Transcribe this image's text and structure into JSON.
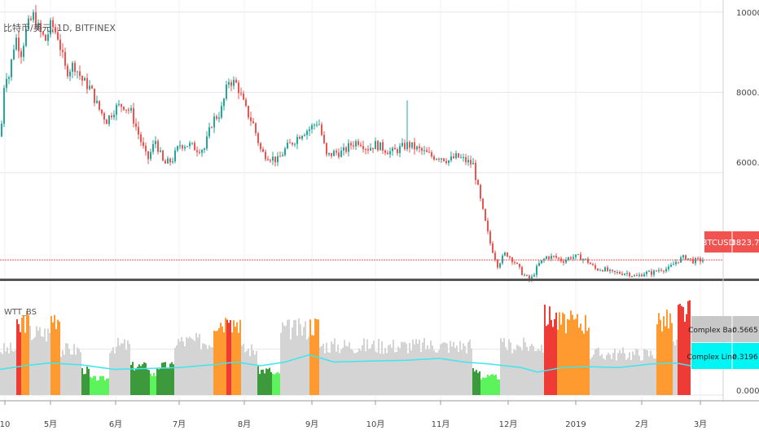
{
  "symbol_title": "比特币/美元, 1D, BITFINEX",
  "indicator_title": "WTT_BS",
  "price_axis": {
    "ticks": [
      "10000.0",
      "8000.0",
      "6000.0"
    ],
    "values": [
      10000,
      8000,
      6000
    ]
  },
  "indicator_axis": {
    "ticks": [
      "0.0000"
    ]
  },
  "last_price": {
    "ticker": "BTCUSD",
    "value": "3823.7",
    "value_num": 3823.7,
    "color": "#f05350"
  },
  "complex_bar": {
    "label": "Complex Bar",
    "value": "0.5665",
    "color": "#c8c8c8"
  },
  "complex_line": {
    "label": "Complex Line",
    "value": "0.3196",
    "color": "#00f5f5"
  },
  "time_axis": [
    "10",
    "5月",
    "6月",
    "7月",
    "8月",
    "9月",
    "10月",
    "11月",
    "12月",
    "2019",
    "2月",
    "3月"
  ],
  "colors": {
    "up": "#26a69a",
    "down": "#ef5350",
    "orange": "#ff9a30",
    "red": "#ef3b36",
    "green_dark": "#3c9a3c",
    "green_light": "#5cf35c",
    "gray": "#d4d4d4",
    "cyan": "#3ee6ee"
  },
  "chart_data": [
    {
      "type": "candlestick",
      "title": "比特币/美元, 1D, BITFINEX",
      "y_range": [
        3400,
        10300
      ],
      "price_path": [
        [
          0,
          6900
        ],
        [
          5,
          8500
        ],
        [
          10,
          8400
        ],
        [
          18,
          9400
        ],
        [
          25,
          9000
        ],
        [
          32,
          9600
        ],
        [
          40,
          9900
        ],
        [
          48,
          9500
        ],
        [
          55,
          9300
        ],
        [
          62,
          9700
        ],
        [
          70,
          9400
        ],
        [
          80,
          8500
        ],
        [
          90,
          8700
        ],
        [
          100,
          8300
        ],
        [
          110,
          8100
        ],
        [
          120,
          7600
        ],
        [
          130,
          7300
        ],
        [
          140,
          7600
        ],
        [
          150,
          7700
        ],
        [
          160,
          7500
        ],
        [
          170,
          6900
        ],
        [
          180,
          6300
        ],
        [
          190,
          6800
        ],
        [
          200,
          6200
        ],
        [
          210,
          6300
        ],
        [
          220,
          6700
        ],
        [
          230,
          6700
        ],
        [
          240,
          6600
        ],
        [
          250,
          6600
        ],
        [
          260,
          7300
        ],
        [
          270,
          7500
        ],
        [
          280,
          8300
        ],
        [
          290,
          8200
        ],
        [
          300,
          7600
        ],
        [
          310,
          7200
        ],
        [
          320,
          6500
        ],
        [
          330,
          6400
        ],
        [
          340,
          6300
        ],
        [
          350,
          6600
        ],
        [
          360,
          6800
        ],
        [
          370,
          7000
        ],
        [
          380,
          7100
        ],
        [
          390,
          7300
        ],
        [
          400,
          6400
        ],
        [
          410,
          6500
        ],
        [
          420,
          6500
        ],
        [
          430,
          6700
        ],
        [
          440,
          6800
        ],
        [
          450,
          6600
        ],
        [
          460,
          6700
        ],
        [
          470,
          6600
        ],
        [
          480,
          6500
        ],
        [
          490,
          6600
        ],
        [
          500,
          6700
        ],
        [
          510,
          6600
        ],
        [
          520,
          6500
        ],
        [
          530,
          6400
        ],
        [
          540,
          6400
        ],
        [
          550,
          6300
        ],
        [
          560,
          6400
        ],
        [
          570,
          6300
        ],
        [
          580,
          6200
        ],
        [
          590,
          5200
        ],
        [
          600,
          4300
        ],
        [
          610,
          3700
        ],
        [
          620,
          4000
        ],
        [
          630,
          3800
        ],
        [
          640,
          3500
        ],
        [
          650,
          3300
        ],
        [
          660,
          3700
        ],
        [
          670,
          3900
        ],
        [
          680,
          3900
        ],
        [
          690,
          3800
        ],
        [
          700,
          3900
        ],
        [
          710,
          3900
        ],
        [
          720,
          3800
        ],
        [
          730,
          3600
        ],
        [
          740,
          3600
        ],
        [
          750,
          3500
        ],
        [
          760,
          3500
        ],
        [
          770,
          3500
        ],
        [
          780,
          3400
        ],
        [
          790,
          3500
        ],
        [
          800,
          3500
        ],
        [
          810,
          3600
        ],
        [
          820,
          3600
        ],
        [
          830,
          3800
        ],
        [
          840,
          3900
        ],
        [
          850,
          3800
        ],
        [
          862,
          3823.7
        ]
      ],
      "spikes": [
        {
          "x": 500,
          "high": 7800
        }
      ]
    },
    {
      "type": "bar",
      "title": "WTT_BS",
      "y_range": [
        0,
        1.2
      ],
      "series": [
        {
          "name": "Complex Bar",
          "current": 0.5665
        },
        {
          "name": "Complex Line",
          "current": 0.3196
        }
      ],
      "segments": [
        {
          "from": 0,
          "to": 20,
          "color": "gray",
          "hi": 0.55
        },
        {
          "from": 20,
          "to": 26,
          "color": "red",
          "hi": 0.8
        },
        {
          "from": 26,
          "to": 36,
          "color": "orange",
          "hi": 0.9
        },
        {
          "from": 36,
          "to": 62,
          "color": "gray",
          "hi": 0.75
        },
        {
          "from": 62,
          "to": 74,
          "color": "orange",
          "hi": 0.95
        },
        {
          "from": 74,
          "to": 100,
          "color": "gray",
          "hi": 0.55
        },
        {
          "from": 100,
          "to": 110,
          "color": "green_dark",
          "hi": 0.3
        },
        {
          "from": 110,
          "to": 134,
          "color": "green_light",
          "hi": 0.2
        },
        {
          "from": 134,
          "to": 160,
          "color": "gray",
          "hi": 0.6
        },
        {
          "from": 160,
          "to": 184,
          "color": "green_dark",
          "hi": 0.35
        },
        {
          "from": 184,
          "to": 192,
          "color": "green_light",
          "hi": 0.25
        },
        {
          "from": 192,
          "to": 214,
          "color": "green_dark",
          "hi": 0.35
        },
        {
          "from": 214,
          "to": 262,
          "color": "gray",
          "hi": 0.65
        },
        {
          "from": 262,
          "to": 278,
          "color": "orange",
          "hi": 0.9
        },
        {
          "from": 278,
          "to": 284,
          "color": "red",
          "hi": 1.05
        },
        {
          "from": 284,
          "to": 296,
          "color": "orange",
          "hi": 0.9
        },
        {
          "from": 296,
          "to": 316,
          "color": "gray",
          "hi": 0.55
        },
        {
          "from": 316,
          "to": 334,
          "color": "green_dark",
          "hi": 0.3
        },
        {
          "from": 334,
          "to": 344,
          "color": "green_light",
          "hi": 0.25
        },
        {
          "from": 344,
          "to": 380,
          "color": "gray",
          "hi": 0.8
        },
        {
          "from": 380,
          "to": 392,
          "color": "orange",
          "hi": 0.85
        },
        {
          "from": 392,
          "to": 580,
          "color": "gray",
          "hi": 0.6
        },
        {
          "from": 580,
          "to": 590,
          "color": "green_dark",
          "hi": 0.3
        },
        {
          "from": 590,
          "to": 614,
          "color": "green_light",
          "hi": 0.22
        },
        {
          "from": 614,
          "to": 668,
          "color": "gray",
          "hi": 0.6
        },
        {
          "from": 668,
          "to": 684,
          "color": "red",
          "hi": 0.95
        },
        {
          "from": 684,
          "to": 724,
          "color": "orange",
          "hi": 0.88
        },
        {
          "from": 724,
          "to": 806,
          "color": "gray",
          "hi": 0.5
        },
        {
          "from": 806,
          "to": 826,
          "color": "orange",
          "hi": 0.9
        },
        {
          "from": 826,
          "to": 832,
          "color": "gray",
          "hi": 0.6
        },
        {
          "from": 832,
          "to": 848,
          "color": "red",
          "hi": 1.0
        }
      ],
      "line_path": [
        [
          0,
          0.28
        ],
        [
          30,
          0.32
        ],
        [
          60,
          0.35
        ],
        [
          100,
          0.33
        ],
        [
          140,
          0.28
        ],
        [
          180,
          0.29
        ],
        [
          220,
          0.3
        ],
        [
          260,
          0.33
        ],
        [
          290,
          0.36
        ],
        [
          320,
          0.32
        ],
        [
          350,
          0.36
        ],
        [
          380,
          0.44
        ],
        [
          410,
          0.36
        ],
        [
          450,
          0.37
        ],
        [
          500,
          0.38
        ],
        [
          540,
          0.4
        ],
        [
          570,
          0.36
        ],
        [
          600,
          0.34
        ],
        [
          640,
          0.3
        ],
        [
          660,
          0.25
        ],
        [
          690,
          0.3
        ],
        [
          720,
          0.31
        ],
        [
          760,
          0.3
        ],
        [
          800,
          0.34
        ],
        [
          830,
          0.35
        ],
        [
          848,
          0.32
        ]
      ]
    }
  ]
}
